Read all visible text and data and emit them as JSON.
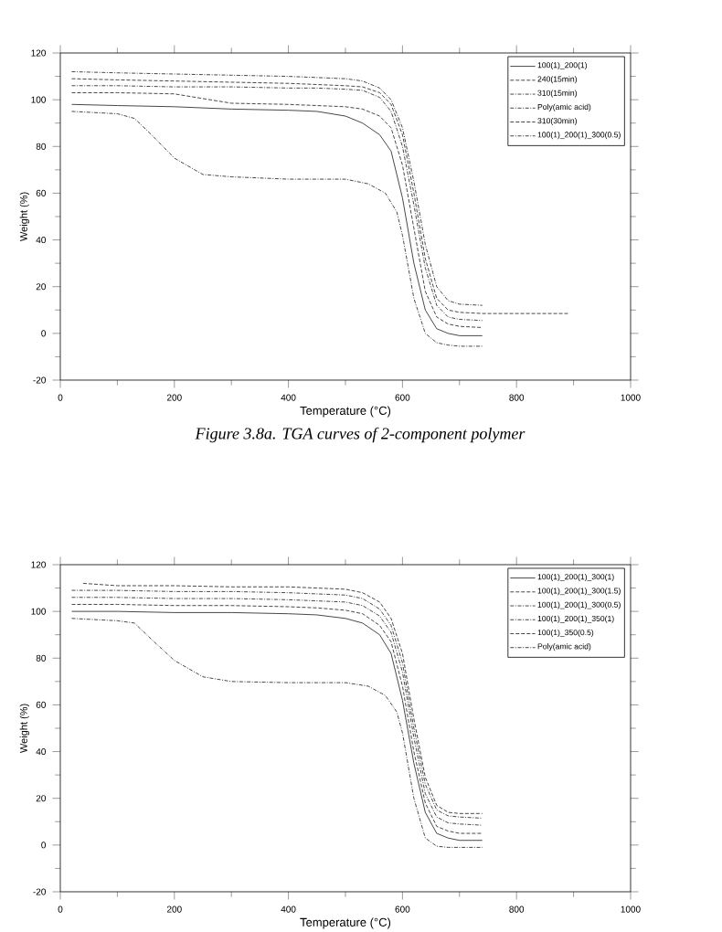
{
  "chart_data": [
    {
      "type": "line",
      "xlabel": "Temperature (°C)",
      "ylabel": "Weight (%)",
      "xlim": [
        0,
        1000
      ],
      "ylim": [
        -20,
        120
      ],
      "xticks": [
        0,
        200,
        400,
        600,
        800,
        1000
      ],
      "yticks": [
        -20,
        0,
        20,
        40,
        60,
        80,
        100,
        120
      ],
      "grid": false,
      "legend": "top right",
      "marker": "none",
      "annotations": [
        "Figure 3.8a. TGA curves of 2-component polymer"
      ],
      "series": [
        {
          "name": "100(1)_200(1)",
          "color": "#333333",
          "line_style": "solid",
          "x": [
            20,
            100,
            200,
            300,
            400,
            450,
            500,
            530,
            560,
            580,
            600,
            620,
            640,
            660,
            680,
            700,
            740
          ],
          "values": [
            98,
            97.5,
            97,
            96,
            95.5,
            95,
            93,
            90,
            85,
            78,
            58,
            30,
            10,
            2,
            0,
            -1,
            -1
          ]
        },
        {
          "name": "240(15min)",
          "color": "#333333",
          "line_style": "dashed",
          "x": [
            20,
            100,
            200,
            300,
            400,
            450,
            500,
            530,
            560,
            580,
            600,
            620,
            640,
            660,
            680,
            700,
            740
          ],
          "values": [
            103,
            103,
            102.5,
            98.5,
            98,
            97.5,
            97,
            96,
            93,
            88,
            72,
            45,
            18,
            7,
            4,
            3,
            2.5
          ]
        },
        {
          "name": "310(15min)",
          "color": "#333333",
          "line_style": "dotted",
          "x": [
            20,
            100,
            200,
            300,
            400,
            450,
            500,
            530,
            560,
            580,
            600,
            620,
            640,
            660,
            680,
            700,
            740
          ],
          "values": [
            106,
            106,
            105.5,
            105.5,
            105,
            105,
            104.5,
            104,
            101,
            95,
            80,
            55,
            28,
            12,
            7,
            6,
            5.5
          ]
        },
        {
          "name": "Poly(amic acid)",
          "color": "#333333",
          "line_style": "dotted",
          "x": [
            20,
            100,
            130,
            160,
            200,
            250,
            300,
            400,
            500,
            540,
            570,
            590,
            600,
            620,
            640,
            660,
            680,
            700,
            740
          ],
          "values": [
            95,
            94,
            92,
            85,
            75,
            68,
            67,
            66,
            66,
            64,
            60,
            52,
            42,
            15,
            0,
            -4,
            -5,
            -5.5,
            -5.5
          ]
        },
        {
          "name": "310(30min)",
          "color": "#333333",
          "line_style": "dashed",
          "x": [
            20,
            100,
            200,
            300,
            400,
            450,
            500,
            530,
            560,
            580,
            600,
            620,
            640,
            660,
            680,
            700,
            740,
            800,
            890
          ],
          "values": [
            109,
            108.5,
            108,
            107.5,
            107,
            106.5,
            106,
            105.5,
            103,
            98,
            85,
            60,
            32,
            15,
            10,
            9,
            8.5,
            8.5,
            8.5
          ]
        },
        {
          "name": "100(1)_200(1)_300(0.5)",
          "color": "#333333",
          "line_style": "dotted",
          "x": [
            20,
            100,
            200,
            300,
            400,
            450,
            500,
            530,
            560,
            580,
            600,
            620,
            640,
            660,
            680,
            700,
            740
          ],
          "values": [
            112,
            111.5,
            111,
            110.5,
            110,
            109.5,
            109,
            108,
            105,
            100,
            88,
            65,
            38,
            20,
            14,
            12.5,
            12
          ]
        }
      ]
    },
    {
      "type": "line",
      "xlabel": "Temperature (°C)",
      "ylabel": "Weight (%)",
      "xlim": [
        0,
        1000
      ],
      "ylim": [
        -20,
        120
      ],
      "xticks": [
        0,
        200,
        400,
        600,
        800,
        1000
      ],
      "yticks": [
        -20,
        0,
        20,
        40,
        60,
        80,
        100,
        120
      ],
      "grid": false,
      "legend": "top right",
      "marker": "none",
      "series": [
        {
          "name": "100(1)_200(1)_300(1)",
          "color": "#333333",
          "line_style": "solid",
          "x": [
            20,
            100,
            200,
            300,
            400,
            450,
            500,
            530,
            560,
            580,
            600,
            620,
            640,
            660,
            680,
            700,
            740
          ],
          "values": [
            100,
            100,
            99.5,
            99.5,
            99,
            98.5,
            97,
            95,
            90,
            82,
            62,
            35,
            14,
            5,
            3,
            2,
            2
          ]
        },
        {
          "name": "100(1)_200(1)_300(1.5)",
          "color": "#333333",
          "line_style": "dashed",
          "x": [
            20,
            100,
            200,
            300,
            400,
            450,
            500,
            530,
            560,
            580,
            600,
            620,
            640,
            660,
            680,
            700,
            740
          ],
          "values": [
            103,
            103,
            102.5,
            102.5,
            102,
            101.5,
            100.5,
            99,
            94,
            87,
            68,
            40,
            18,
            8,
            6,
            5,
            5
          ]
        },
        {
          "name": "100(1)_200(1)_300(0.5)",
          "color": "#333333",
          "line_style": "dotted",
          "x": [
            20,
            100,
            200,
            300,
            400,
            450,
            500,
            530,
            560,
            580,
            600,
            620,
            640,
            660,
            680,
            700,
            740
          ],
          "values": [
            106,
            106,
            105.5,
            105.5,
            105,
            104.5,
            104,
            102.5,
            98,
            91,
            74,
            46,
            22,
            12,
            9.5,
            9,
            8.5
          ]
        },
        {
          "name": "100(1)_200(1)_350(1)",
          "color": "#333333",
          "line_style": "dotted",
          "x": [
            20,
            100,
            200,
            300,
            400,
            450,
            500,
            530,
            560,
            580,
            600,
            620,
            640,
            660,
            680,
            700,
            740
          ],
          "values": [
            109,
            109,
            108.5,
            108.5,
            108,
            107.5,
            107,
            105.5,
            101,
            94,
            78,
            50,
            26,
            15,
            12.5,
            12,
            11.5
          ]
        },
        {
          "name": "100(1)_350(0.5)",
          "color": "#333333",
          "line_style": "dashed",
          "x": [
            40,
            100,
            200,
            300,
            400,
            450,
            500,
            530,
            560,
            580,
            600,
            620,
            640,
            660,
            680,
            700,
            740
          ],
          "values": [
            112,
            111,
            111,
            110.5,
            110.5,
            110,
            109.5,
            108,
            104,
            97,
            82,
            54,
            29,
            17,
            14,
            13.5,
            13.5
          ]
        },
        {
          "name": "Poly(amic acid)",
          "color": "#333333",
          "line_style": "dotted",
          "x": [
            20,
            100,
            130,
            160,
            200,
            250,
            300,
            400,
            500,
            540,
            570,
            590,
            600,
            620,
            640,
            660,
            680,
            700,
            740
          ],
          "values": [
            97,
            96,
            95,
            88,
            79,
            72,
            70,
            69.5,
            69.5,
            68,
            64,
            57,
            48,
            20,
            3,
            -0.5,
            -1,
            -1,
            -1
          ]
        }
      ]
    }
  ]
}
